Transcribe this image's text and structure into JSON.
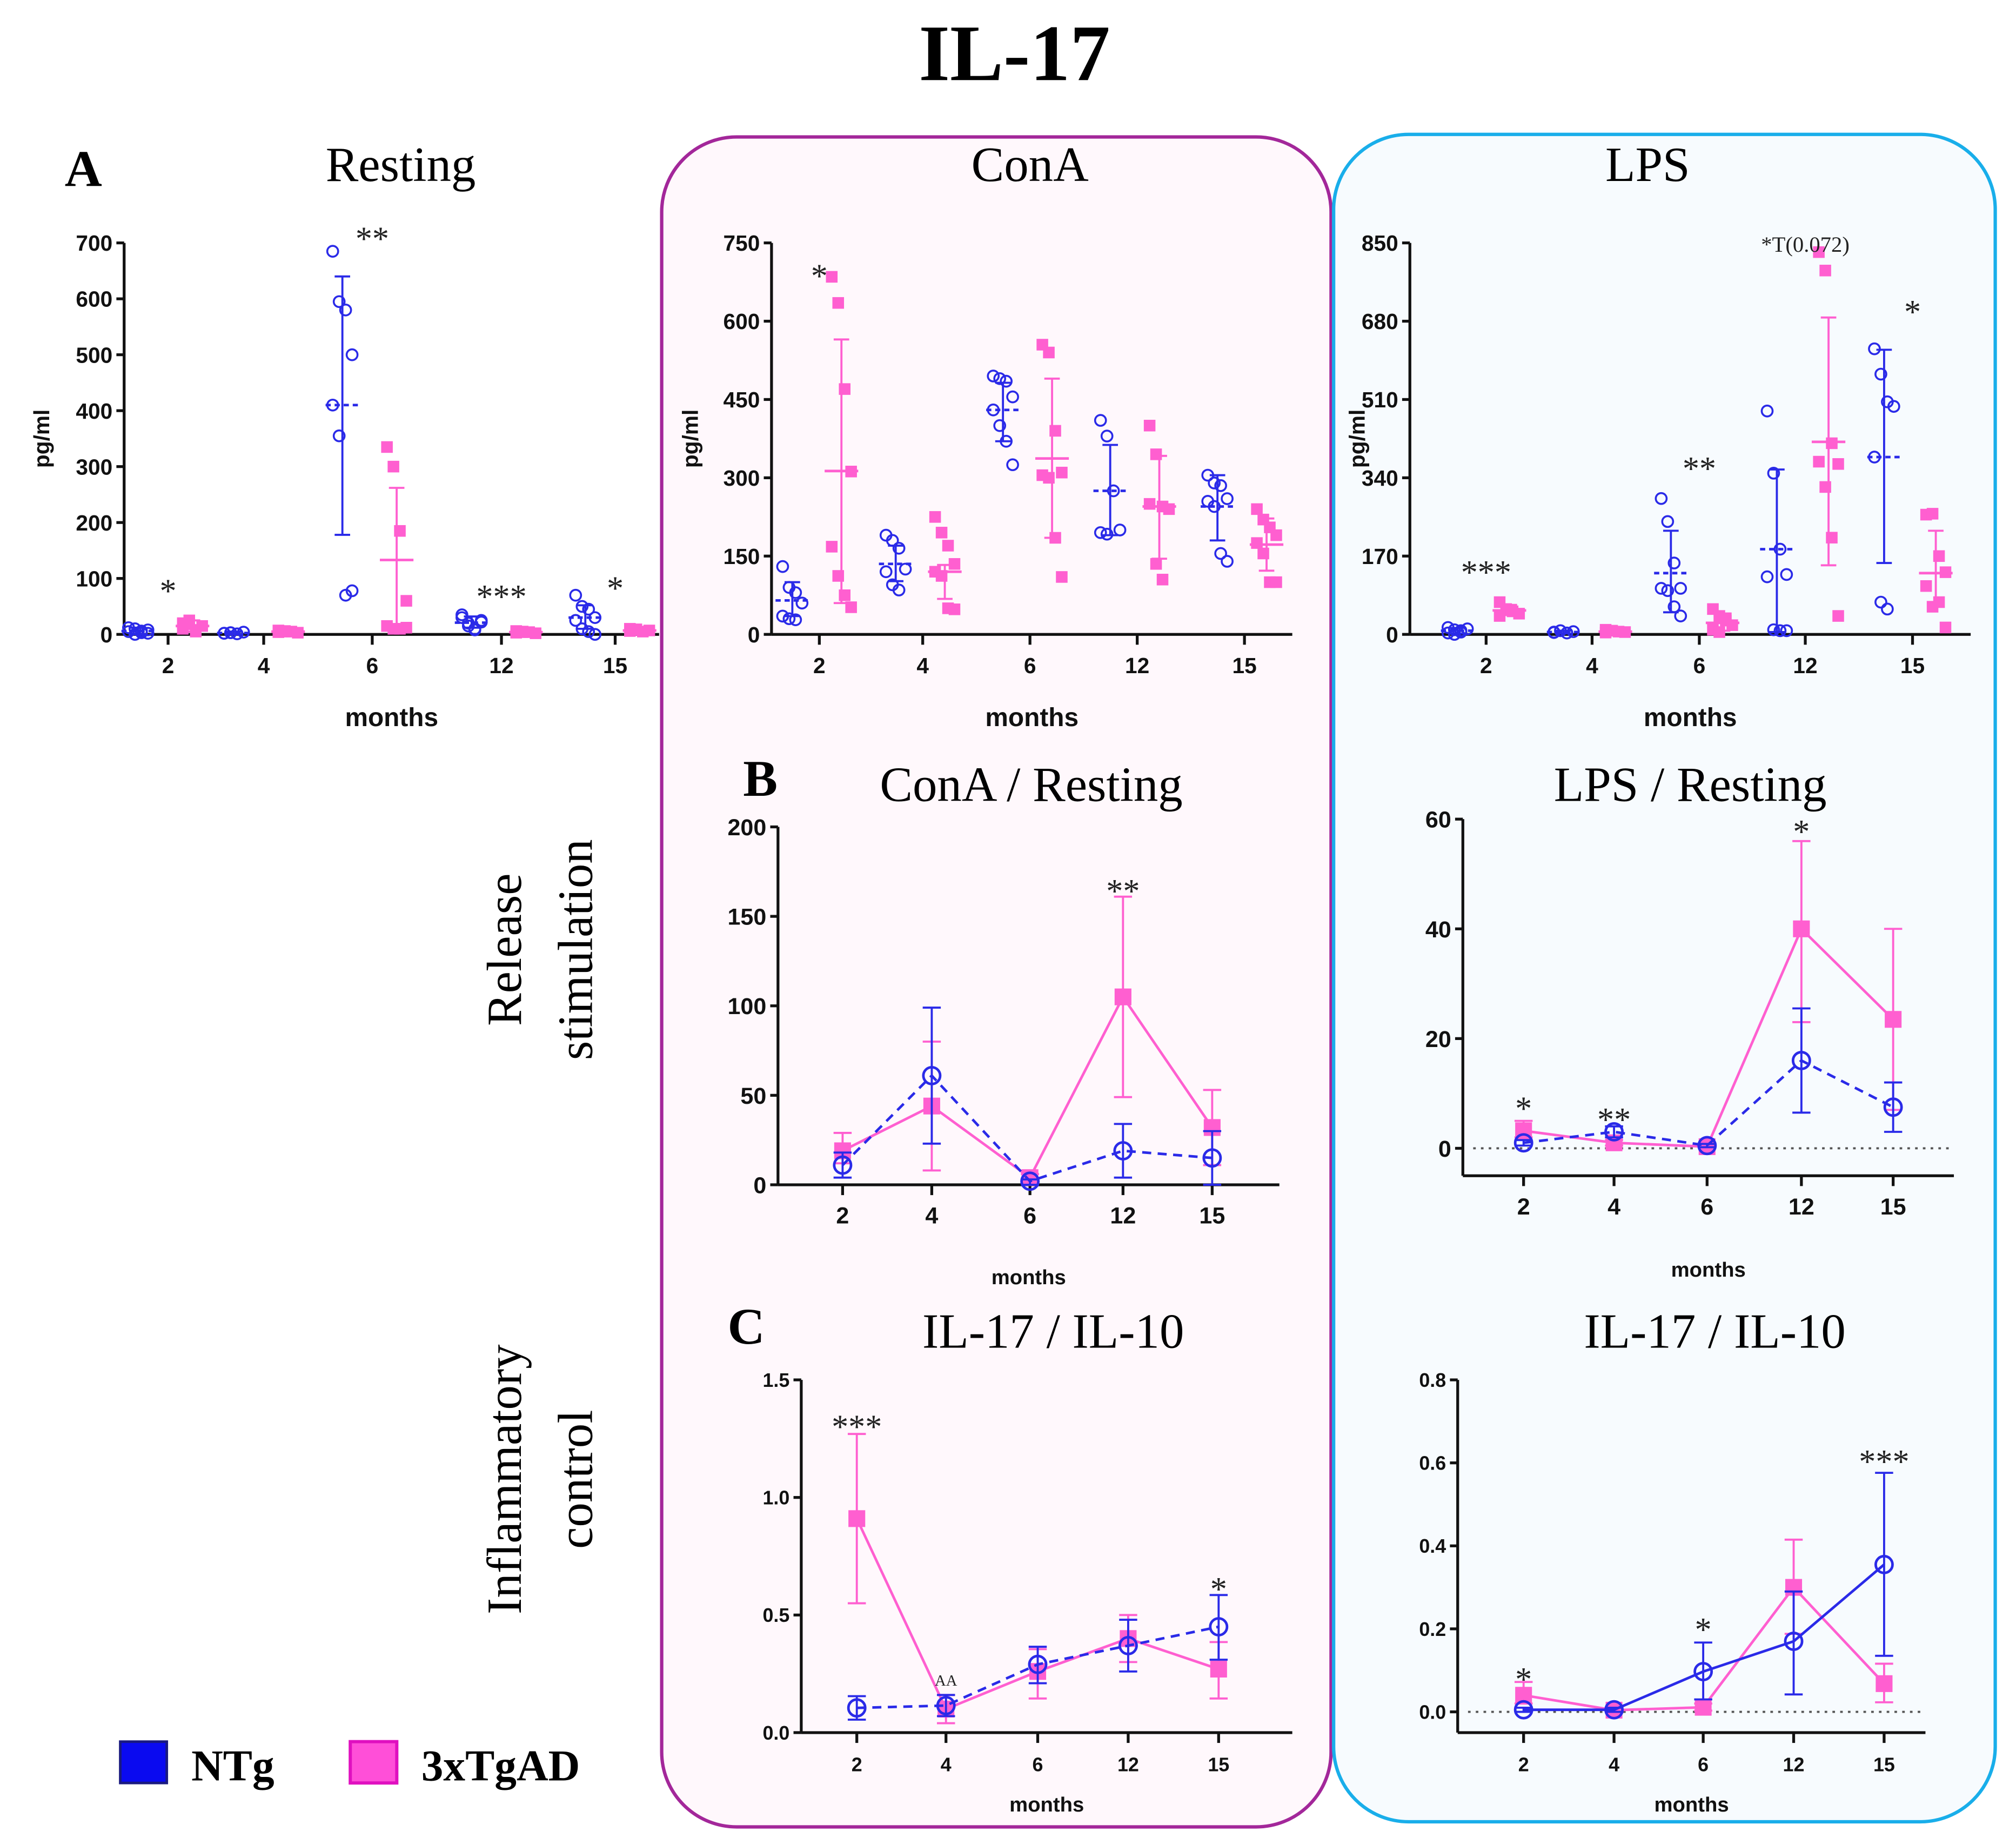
{
  "figure": {
    "title": "IL-17",
    "row_labels": {
      "release_line1": "Release",
      "release_line2": "stimulation",
      "inflam_line1": "Inflammatory",
      "inflam_line2": "control"
    },
    "panel_letters": {
      "a": "A",
      "b": "B",
      "c": "C"
    },
    "legend": [
      {
        "label": "NTg",
        "color": "#0a0af0",
        "border": "#1a1a80"
      },
      {
        "label": "3xTgAD",
        "color": "#ff4fd8",
        "border": "#e010c0"
      }
    ],
    "box_colors": {
      "cona_border": "#a3279a",
      "cona_fill": "#fff8fc",
      "lps_border": "#19aeea",
      "lps_fill": "#f7fbfe"
    },
    "series_colors": {
      "NTg": "#2a2ae8",
      "3xTgAD": "#ff5fd0"
    }
  },
  "chart_data": [
    {
      "id": "resting",
      "type": "scatter",
      "title": "Resting",
      "xlabel": "months",
      "ylabel": "pg/ml",
      "categories": [
        "2",
        "4",
        "6",
        "12",
        "15"
      ],
      "ylim": [
        0,
        700
      ],
      "yticks": [
        0,
        100,
        200,
        300,
        400,
        500,
        600,
        700
      ],
      "series": [
        {
          "name": "NTg",
          "points": [
            [
              5,
              10,
              3,
              8,
              12,
              0,
              6,
              2
            ],
            [
              2,
              3,
              1,
              4,
              2,
              3
            ],
            [
              685,
              595,
              580,
              500,
              410,
              355,
              70,
              78
            ],
            [
              35,
              20,
              10,
              25,
              30,
              15,
              8,
              22
            ],
            [
              70,
              50,
              45,
              30,
              25,
              10,
              5,
              0
            ]
          ],
          "mean": [
            6,
            2.5,
            410,
            21,
            30
          ],
          "sd_low": [
            0,
            0,
            178,
            12,
            10
          ],
          "sd_high": [
            12,
            5,
            640,
            32,
            52
          ]
        },
        {
          "name": "3xTgAD",
          "points": [
            [
              10,
              25,
              5,
              15,
              20,
              18,
              8
            ],
            [
              4,
              6,
              5,
              3,
              7,
              5
            ],
            [
              335,
              300,
              185,
              60,
              15,
              10,
              10,
              12
            ],
            [
              3,
              5,
              4,
              2,
              6,
              4
            ],
            [
              10,
              8,
              5,
              7,
              6,
              9
            ]
          ],
          "mean": [
            15,
            5,
            133,
            4,
            7
          ],
          "sd_low": [
            5,
            2,
            5,
            2,
            4
          ],
          "sd_high": [
            25,
            8,
            262,
            6,
            10
          ]
        }
      ],
      "annotations": [
        {
          "x": "2",
          "text": "*",
          "y": 90
        },
        {
          "x": "6",
          "text": "**",
          "y": 720
        },
        {
          "x": "12",
          "text": "***",
          "y": 80
        },
        {
          "x": "15",
          "text": "*",
          "y": 95
        }
      ]
    },
    {
      "id": "cona",
      "type": "scatter",
      "title": "ConA",
      "xlabel": "months",
      "ylabel": "pg/ml",
      "categories": [
        "2",
        "4",
        "6",
        "12",
        "15"
      ],
      "ylim": [
        0,
        750
      ],
      "yticks": [
        0,
        150,
        300,
        450,
        600,
        750
      ],
      "series": [
        {
          "name": "NTg",
          "points": [
            [
              130,
              90,
              80,
              60,
              35,
              30,
              28
            ],
            [
              190,
              180,
              165,
              125,
              120,
              95,
              85
            ],
            [
              495,
              490,
              485,
              455,
              430,
              400,
              370,
              325
            ],
            [
              410,
              380,
              275,
              200,
              195,
              192
            ],
            [
              305,
              290,
              285,
              260,
              255,
              245,
              155,
              140
            ]
          ],
          "mean": [
            65,
            135,
            430,
            275,
            245
          ],
          "sd_low": [
            35,
            102,
            370,
            190,
            180
          ],
          "sd_high": [
            100,
            170,
            482,
            363,
            305
          ]
        },
        {
          "name": "3xTgAD",
          "points": [
            [
              685,
              635,
              470,
              312,
              168,
              112,
              75,
              52
            ],
            [
              225,
              195,
              170,
              135,
              120,
              112,
              50,
              48
            ],
            [
              555,
              540,
              390,
              310,
              305,
              300,
              185,
              110
            ],
            [
              400,
              345,
              245,
              240,
              250,
              135,
              105
            ],
            [
              240,
              220,
              205,
              190,
              175,
              155,
              100,
              100
            ]
          ],
          "mean": [
            313,
            120,
            337,
            245,
            172
          ],
          "sd_low": [
            60,
            68,
            185,
            145,
            122
          ],
          "sd_high": [
            565,
            133,
            490,
            342,
            222
          ]
        }
      ],
      "annotations": [
        {
          "x": "2",
          "text": "*",
          "y": 700
        }
      ]
    },
    {
      "id": "lps",
      "type": "scatter",
      "title": "LPS",
      "xlabel": "months",
      "ylabel": "pg/ml",
      "categories": [
        "2",
        "4",
        "6",
        "12",
        "15"
      ],
      "ylim": [
        0,
        850
      ],
      "yticks": [
        0,
        170,
        340,
        510,
        680,
        850
      ],
      "series": [
        {
          "name": "NTg",
          "points": [
            [
              15,
              10,
              5,
              12,
              3,
              0,
              8
            ],
            [
              5,
              8,
              3,
              6,
              4
            ],
            [
              295,
              245,
              155,
              100,
              100,
              95,
              60,
              40
            ],
            [
              485,
              350,
              185,
              130,
              125,
              10,
              8,
              8
            ],
            [
              620,
              565,
              505,
              495,
              385,
              70,
              55
            ]
          ],
          "mean": [
            8,
            5,
            133,
            185,
            385
          ],
          "sd_low": [
            2,
            2,
            48,
            5,
            155
          ],
          "sd_high": [
            14,
            8,
            225,
            358,
            618
          ]
        },
        {
          "name": "3xTgAD",
          "points": [
            [
              70,
              55,
              50,
              45,
              40
            ],
            [
              10,
              8,
              6,
              5,
              4
            ],
            [
              55,
              40,
              30,
              20,
              10,
              5,
              35
            ],
            [
              830,
              790,
              415,
              370,
              375,
              320,
              210,
              40
            ],
            [
              260,
              262,
              170,
              135,
              105,
              60,
              70,
              15
            ]
          ],
          "mean": [
            52,
            6,
            25,
            418,
            133
          ],
          "sd_low": [
            42,
            4,
            8,
            150,
            60
          ],
          "sd_high": [
            64,
            9,
            45,
            688,
            225
          ]
        }
      ],
      "annotations": [
        {
          "x": "2",
          "text": "***",
          "y": 150
        },
        {
          "x": "6",
          "text": "**",
          "y": 375
        },
        {
          "x": "12",
          "text": "*T(0.072)",
          "y": 870
        },
        {
          "x": "15",
          "text": "*",
          "y": 715
        }
      ]
    },
    {
      "id": "cona_resting",
      "type": "line",
      "title": "ConA / Resting",
      "xlabel": "months",
      "ylabel": "",
      "categories": [
        "2",
        "4",
        "6",
        "12",
        "15"
      ],
      "ylim": [
        0,
        200
      ],
      "yticks": [
        0,
        50,
        100,
        150,
        200
      ],
      "series": [
        {
          "name": "NTg",
          "values": [
            11,
            61,
            2,
            19,
            15
          ],
          "err_low": [
            4,
            23,
            0,
            4,
            0
          ],
          "err_high": [
            18,
            99,
            3,
            34,
            30
          ],
          "dashed": true
        },
        {
          "name": "3xTgAD",
          "values": [
            19,
            44,
            4,
            105,
            32
          ],
          "err_low": [
            12,
            8,
            1,
            49,
            11
          ],
          "err_high": [
            29,
            80,
            6,
            161,
            53
          ],
          "dashed": false
        }
      ],
      "annotations": [
        {
          "x": "12",
          "text": "**",
          "y": 168
        }
      ]
    },
    {
      "id": "lps_resting",
      "type": "line",
      "title": "LPS / Resting",
      "xlabel": "months",
      "ylabel": "",
      "categories": [
        "2",
        "4",
        "6",
        "12",
        "15"
      ],
      "ylim": [
        -5,
        60
      ],
      "yticks": [
        0,
        20,
        40,
        60
      ],
      "zero_line": true,
      "series": [
        {
          "name": "NTg",
          "values": [
            1,
            3,
            0.5,
            16,
            7.5
          ],
          "err_low": [
            0.5,
            2,
            0.2,
            6.5,
            3
          ],
          "err_high": [
            1.5,
            4,
            0.8,
            25.5,
            12
          ],
          "dashed": true
        },
        {
          "name": "3xTgAD",
          "values": [
            3.2,
            1,
            0.3,
            40,
            23.5
          ],
          "err_low": [
            2,
            0.5,
            0,
            23,
            7
          ],
          "err_high": [
            5,
            1.5,
            0.6,
            56,
            40
          ],
          "dashed": false
        }
      ],
      "annotations": [
        {
          "x": "2",
          "text": "*",
          "y": 8.5
        },
        {
          "x": "4",
          "text": "**",
          "y": 6.5
        },
        {
          "x": "12",
          "text": "*",
          "y": 59
        }
      ]
    },
    {
      "id": "cona_il10",
      "type": "line",
      "title": "IL-17 / IL-10",
      "xlabel": "months",
      "ylabel": "",
      "categories": [
        "2",
        "4",
        "6",
        "12",
        "15"
      ],
      "ylim": [
        0,
        1.5
      ],
      "yticks": [
        "0.0",
        "0.5",
        "1.0",
        "1.5"
      ],
      "series": [
        {
          "name": "NTg",
          "values": [
            0.105,
            0.115,
            0.29,
            0.37,
            0.45
          ],
          "err_low": [
            0.055,
            0.07,
            0.21,
            0.26,
            0.31
          ],
          "err_high": [
            0.155,
            0.16,
            0.365,
            0.48,
            0.585
          ],
          "dashed": true
        },
        {
          "name": "3xTgAD",
          "values": [
            0.91,
            0.1,
            0.26,
            0.4,
            0.27
          ],
          "err_low": [
            0.55,
            0.04,
            0.145,
            0.3,
            0.145
          ],
          "err_high": [
            1.27,
            0.16,
            0.355,
            0.5,
            0.385
          ],
          "dashed": false
        }
      ],
      "annotations": [
        {
          "x": "2",
          "text": "***",
          "y": 1.33
        },
        {
          "x": "4",
          "text": "AA",
          "y": 0.2
        },
        {
          "x": "15",
          "text": "*",
          "y": 0.64
        }
      ]
    },
    {
      "id": "lps_il10",
      "type": "line",
      "title": "IL-17 / IL-10",
      "xlabel": "months",
      "ylabel": "",
      "categories": [
        "2",
        "4",
        "6",
        "12",
        "15"
      ],
      "ylim": [
        -0.05,
        0.8
      ],
      "yticks": [
        "0.0",
        "0.2",
        "0.4",
        "0.6",
        "0.8"
      ],
      "zero_line": true,
      "series": [
        {
          "name": "NTg",
          "values": [
            0.005,
            0.005,
            0.097,
            0.17,
            0.355
          ],
          "err_low": [
            0,
            0,
            0.03,
            0.042,
            0.135
          ],
          "err_high": [
            0.01,
            0.01,
            0.167,
            0.29,
            0.576
          ],
          "dashed": false
        },
        {
          "name": "3xTgAD",
          "values": [
            0.04,
            0.004,
            0.011,
            0.3,
            0.068
          ],
          "err_low": [
            0.02,
            0,
            0.003,
            0.188,
            0.023
          ],
          "err_high": [
            0.072,
            0.008,
            0.02,
            0.415,
            0.116
          ],
          "dashed": false
        }
      ],
      "annotations": [
        {
          "x": "2",
          "text": "*",
          "y": 0.095
        },
        {
          "x": "6",
          "text": "*",
          "y": 0.215
        },
        {
          "x": "15",
          "text": "***",
          "y": 0.62
        }
      ]
    }
  ]
}
